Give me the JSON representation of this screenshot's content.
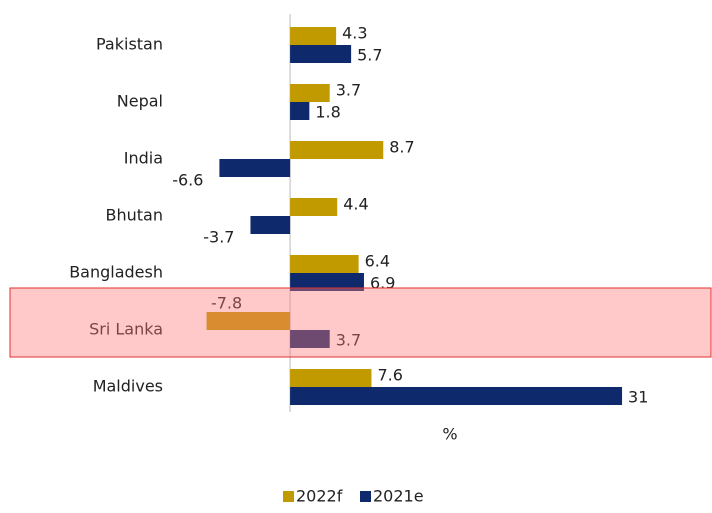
{
  "chart_data": {
    "type": "bar",
    "orientation": "horizontal",
    "x_label": "%",
    "categories": [
      "Pakistan",
      "Nepal",
      "India",
      "Bhutan",
      "Bangladesh",
      "Sri Lanka",
      "Maldives"
    ],
    "series": [
      {
        "name": "2022f",
        "color": "#c19a00",
        "values": [
          4.3,
          3.7,
          8.7,
          4.4,
          6.4,
          -7.8,
          7.6
        ]
      },
      {
        "name": "2021e",
        "color": "#0e2a6c",
        "values": [
          5.7,
          1.8,
          -6.6,
          -3.7,
          6.9,
          3.7,
          31
        ]
      }
    ],
    "xlim": [
      -10,
      38
    ],
    "legend": "bottom"
  }
}
